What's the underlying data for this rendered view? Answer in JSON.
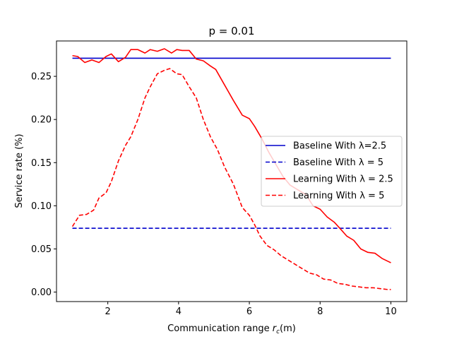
{
  "chart_data": {
    "type": "line",
    "title": "p = 0.01",
    "xlabel_prefix": "Communication range ",
    "xlabel_var": "r",
    "xlabel_sub": "c",
    "xlabel_suffix": "(m)",
    "ylabel": "Service rate (%)",
    "xlim": [
      0.55,
      10.45
    ],
    "ylim": [
      -0.011,
      0.291
    ],
    "xticks": [
      2,
      4,
      6,
      8,
      10
    ],
    "xtick_labels": [
      "2",
      "4",
      "6",
      "8",
      "10"
    ],
    "yticks": [
      0.0,
      0.05,
      0.1,
      0.15,
      0.2,
      0.25
    ],
    "ytick_labels": [
      "0.00",
      "0.05",
      "0.10",
      "0.15",
      "0.20",
      "0.25"
    ],
    "grid": false,
    "legend_position": "center-right",
    "series": [
      {
        "name": "Baseline With λ=2.5",
        "color": "#0000cc",
        "dash": "solid",
        "x": [
          1,
          10
        ],
        "y": [
          0.271,
          0.271
        ]
      },
      {
        "name": "Baseline With λ = 5",
        "color": "#0000cc",
        "dash": "dashed",
        "x": [
          1,
          10
        ],
        "y": [
          0.074,
          0.074
        ]
      },
      {
        "name": "Learning With λ = 2.5",
        "color": "#ff0000",
        "dash": "solid",
        "x": [
          1.0,
          1.15,
          1.35,
          1.55,
          1.75,
          1.95,
          2.1,
          2.3,
          2.5,
          2.65,
          2.85,
          3.05,
          3.2,
          3.4,
          3.6,
          3.8,
          3.95,
          4.1,
          4.3,
          4.5,
          4.7,
          4.9,
          5.05,
          5.3,
          5.55,
          5.8,
          6.0,
          6.15,
          6.35,
          6.55,
          6.75,
          6.95,
          7.15,
          7.35,
          7.6,
          7.8,
          8.0,
          8.2,
          8.4,
          8.6,
          8.75,
          8.95,
          9.15,
          9.35,
          9.55,
          9.75,
          9.95,
          10.0
        ],
        "y": [
          0.274,
          0.273,
          0.266,
          0.269,
          0.266,
          0.273,
          0.276,
          0.267,
          0.272,
          0.281,
          0.281,
          0.277,
          0.281,
          0.279,
          0.282,
          0.277,
          0.281,
          0.28,
          0.28,
          0.27,
          0.268,
          0.262,
          0.258,
          0.24,
          0.222,
          0.205,
          0.201,
          0.192,
          0.178,
          0.162,
          0.148,
          0.134,
          0.124,
          0.119,
          0.113,
          0.1,
          0.096,
          0.087,
          0.081,
          0.072,
          0.065,
          0.06,
          0.05,
          0.046,
          0.045,
          0.039,
          0.035,
          0.034
        ]
      },
      {
        "name": "Learning With λ = 5",
        "color": "#ff0000",
        "dash": "dashed",
        "x": [
          1.0,
          1.2,
          1.4,
          1.6,
          1.75,
          1.95,
          2.1,
          2.3,
          2.5,
          2.65,
          2.85,
          3.05,
          3.2,
          3.4,
          3.6,
          3.75,
          3.95,
          4.1,
          4.3,
          4.5,
          4.7,
          4.9,
          5.1,
          5.3,
          5.55,
          5.8,
          6.0,
          6.15,
          6.3,
          6.5,
          6.7,
          6.9,
          7.1,
          7.3,
          7.5,
          7.7,
          7.9,
          8.1,
          8.3,
          8.5,
          8.7,
          8.9,
          9.1,
          9.3,
          9.5,
          9.7,
          9.9,
          10.0
        ],
        "y": [
          0.076,
          0.089,
          0.09,
          0.095,
          0.109,
          0.115,
          0.128,
          0.152,
          0.17,
          0.18,
          0.2,
          0.225,
          0.238,
          0.253,
          0.257,
          0.259,
          0.253,
          0.252,
          0.238,
          0.225,
          0.2,
          0.18,
          0.165,
          0.145,
          0.125,
          0.098,
          0.089,
          0.078,
          0.065,
          0.054,
          0.049,
          0.042,
          0.037,
          0.032,
          0.027,
          0.022,
          0.02,
          0.015,
          0.014,
          0.01,
          0.009,
          0.007,
          0.006,
          0.005,
          0.005,
          0.004,
          0.003,
          0.003
        ]
      }
    ]
  }
}
